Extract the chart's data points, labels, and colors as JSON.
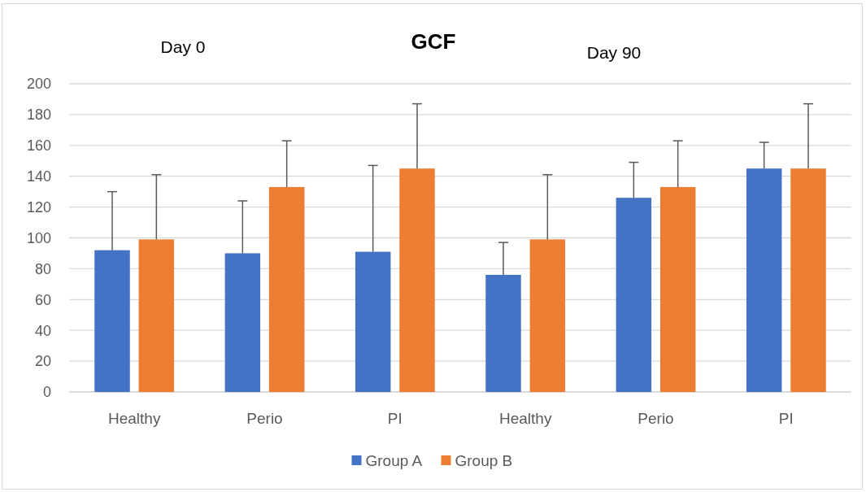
{
  "chart_data": {
    "type": "bar",
    "title": "GCF",
    "annotations": [
      "Day 0",
      "Day 90"
    ],
    "categories": [
      "Healthy",
      "Perio",
      "PI",
      "Healthy",
      "Perio",
      "PI"
    ],
    "series": [
      {
        "name": "Group A",
        "color": "#4472c4",
        "values": [
          92,
          90,
          91,
          76,
          126,
          145
        ],
        "errors": [
          [
            92,
            130
          ],
          [
            90,
            124
          ],
          [
            91,
            147
          ],
          [
            76,
            97
          ],
          [
            126,
            149
          ],
          [
            145,
            162
          ]
        ]
      },
      {
        "name": "Group B",
        "color": "#ed7d31",
        "values": [
          99,
          133,
          145,
          99,
          133,
          145
        ],
        "errors": [
          [
            99,
            141
          ],
          [
            133,
            163
          ],
          [
            145,
            187
          ],
          [
            99,
            141
          ],
          [
            133,
            163
          ],
          [
            145,
            187
          ]
        ]
      }
    ],
    "ylim": [
      0,
      200
    ],
    "yticks": [
      0,
      20,
      40,
      60,
      80,
      100,
      120,
      140,
      160,
      180,
      200
    ],
    "grid": "y",
    "legend": "bottom"
  }
}
